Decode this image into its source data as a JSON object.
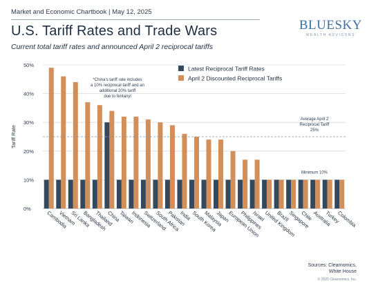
{
  "header": {
    "text": "Market and Economic Chartbook | May 12, 2025",
    "title": "U.S. Tariff Rates and Trade Wars",
    "subtitle": "Current total tariff rates and announced April 2 reciprocal tariffs"
  },
  "logo": {
    "main": "BLUESKY",
    "sub": "WEALTH ADVISORS"
  },
  "footer": {
    "sources_line1": "Sources: Clearnomics,",
    "sources_line2": "White House",
    "copyright": "© 2025 Clearnomics, Inc."
  },
  "colors": {
    "latest": "#34495e",
    "april": "#d38f5a",
    "grid": "#d6dbe0"
  },
  "chart_data": {
    "type": "bar",
    "ylabel": "Tariff Rate",
    "ylim": [
      0,
      50
    ],
    "yticks": [
      0,
      10,
      20,
      30,
      40,
      50
    ],
    "ytick_labels": [
      "0%",
      "10%",
      "20%",
      "30%",
      "40%",
      "50%"
    ],
    "grid": true,
    "legend_position": "top-right",
    "categories": [
      "Cambodia",
      "Vietnam",
      "Sri Lanka",
      "Bangladesh",
      "Thailand",
      "China",
      "Taiwan",
      "Indonesia",
      "Switzerland",
      "South Africa",
      "Pakistan",
      "India",
      "South Korea",
      "Malaysia",
      "Japan",
      "European Union",
      "Philippines",
      "Israel",
      "United Kingdom",
      "Brazil",
      "Singapore",
      "Chile",
      "Australia",
      "Turkey",
      "Colombia"
    ],
    "series": [
      {
        "name": "Latest Reciprocal Tariff Rates",
        "values": [
          10,
          10,
          10,
          10,
          10,
          30,
          10,
          10,
          10,
          10,
          10,
          10,
          10,
          10,
          10,
          10,
          10,
          10,
          10,
          10,
          10,
          10,
          10,
          10,
          10
        ]
      },
      {
        "name": "April 2 Discounted Reciprocal Tariffs",
        "values": [
          49,
          46,
          44,
          37,
          36,
          34,
          32,
          32,
          31,
          30,
          29,
          26,
          25,
          24,
          24,
          20,
          17,
          17,
          10,
          10,
          10,
          10,
          10,
          10,
          10
        ]
      }
    ],
    "reference_lines": [
      {
        "value": 25,
        "label_lines": [
          "Average April 2",
          "Reciprocal Tariff",
          "25%"
        ]
      },
      {
        "value": 10,
        "label_lines": [
          "Minimum 10%"
        ]
      }
    ],
    "annotations": [
      {
        "text_lines": [
          "*China's tariff rate includes",
          "a 10% reciprocal tariff and an",
          "additional 20% tariff",
          "due to fentanyl"
        ]
      }
    ]
  }
}
